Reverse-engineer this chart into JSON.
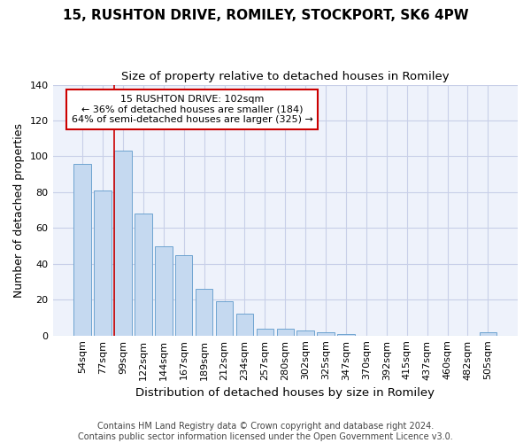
{
  "title_line1": "15, RUSHTON DRIVE, ROMILEY, STOCKPORT, SK6 4PW",
  "title_line2": "Size of property relative to detached houses in Romiley",
  "xlabel": "Distribution of detached houses by size in Romiley",
  "ylabel": "Number of detached properties",
  "categories": [
    "54sqm",
    "77sqm",
    "99sqm",
    "122sqm",
    "144sqm",
    "167sqm",
    "189sqm",
    "212sqm",
    "234sqm",
    "257sqm",
    "280sqm",
    "302sqm",
    "325sqm",
    "347sqm",
    "370sqm",
    "392sqm",
    "415sqm",
    "437sqm",
    "460sqm",
    "482sqm",
    "505sqm"
  ],
  "values": [
    96,
    81,
    103,
    68,
    50,
    45,
    26,
    19,
    12,
    4,
    4,
    3,
    2,
    1,
    0,
    0,
    0,
    0,
    0,
    0,
    2
  ],
  "bar_color": "#c5d9f0",
  "bar_edge_color": "#6ea3d0",
  "vline_index": 2,
  "vline_color": "#cc0000",
  "ann_line1": "15 RUSHTON DRIVE: 102sqm",
  "ann_line2": "← 36% of detached houses are smaller (184)",
  "ann_line3": "64% of semi-detached houses are larger (325) →",
  "ann_box_facecolor": "#ffffff",
  "ann_box_edgecolor": "#cc0000",
  "ylim": [
    0,
    140
  ],
  "yticks": [
    0,
    20,
    40,
    60,
    80,
    100,
    120,
    140
  ],
  "footer_line1": "Contains HM Land Registry data © Crown copyright and database right 2024.",
  "footer_line2": "Contains public sector information licensed under the Open Government Licence v3.0.",
  "fig_bg_color": "#ffffff",
  "plot_bg_color": "#eef2fb",
  "grid_color": "#c8cfe8",
  "title_fontsize": 11,
  "subtitle_fontsize": 9.5,
  "ylabel_fontsize": 9,
  "xlabel_fontsize": 9.5,
  "tick_fontsize": 8,
  "footer_fontsize": 7
}
